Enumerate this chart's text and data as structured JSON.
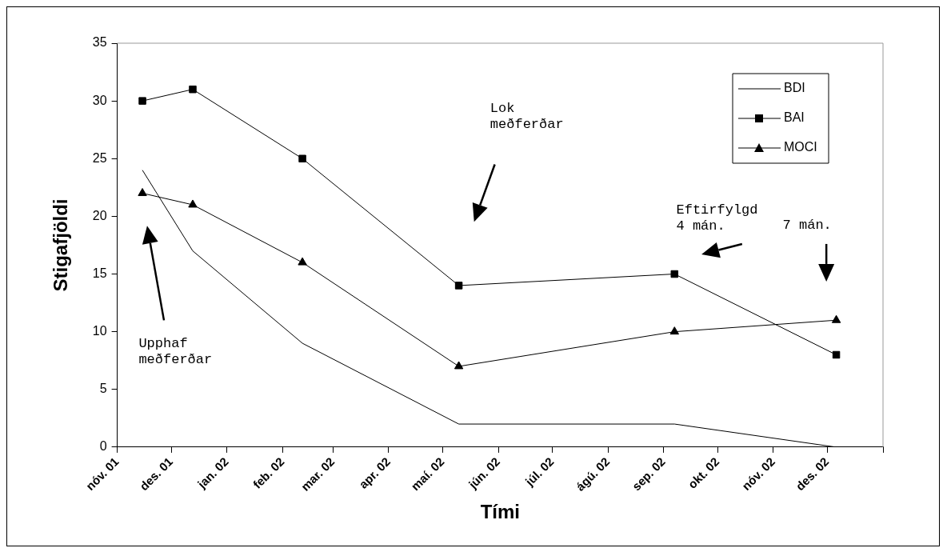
{
  "chart_data": {
    "type": "line",
    "xlabel": "Tími",
    "ylabel": "Stigafjöldi",
    "x": [
      "2001-11-15",
      "2001-12-13",
      "2002-02-12",
      "2002-05-10",
      "2002-09-07",
      "2002-12-06"
    ],
    "series": [
      {
        "name": "BDI",
        "color": "#000000",
        "marker": "none",
        "values": [
          24,
          17,
          9,
          2,
          2,
          0
        ]
      },
      {
        "name": "BAI",
        "color": "#000000",
        "marker": "square",
        "values": [
          30,
          31,
          25,
          14,
          15,
          8
        ]
      },
      {
        "name": "MOCI",
        "color": "#000000",
        "marker": "triangle",
        "values": [
          22,
          21,
          16,
          7,
          10,
          11
        ]
      }
    ],
    "xlim": [
      "2001-11-01",
      "2003-01-01"
    ],
    "xticks": [
      {
        "value": "2001-11",
        "label": "nóv. 01"
      },
      {
        "value": "2001-12",
        "label": "des. 01"
      },
      {
        "value": "2002-01",
        "label": "jan. 02"
      },
      {
        "value": "2002-02",
        "label": "feb. 02"
      },
      {
        "value": "2002-03",
        "label": "mar. 02"
      },
      {
        "value": "2002-04",
        "label": "apr. 02"
      },
      {
        "value": "2002-05",
        "label": "maí. 02"
      },
      {
        "value": "2002-06",
        "label": "jún. 02"
      },
      {
        "value": "2002-07",
        "label": "júl. 02"
      },
      {
        "value": "2002-08",
        "label": "ágú. 02"
      },
      {
        "value": "2002-09",
        "label": "sep. 02"
      },
      {
        "value": "2002-10",
        "label": "okt. 02"
      },
      {
        "value": "2002-11",
        "label": "nóv. 02"
      },
      {
        "value": "2002-12",
        "label": "des. 02"
      },
      {
        "value": "2003-01",
        "label": null
      }
    ],
    "ylim": [
      0,
      35
    ],
    "yticks": [
      0,
      5,
      10,
      15,
      20,
      25,
      30,
      35
    ],
    "grid": false,
    "legend": "top right",
    "line_style": "solid",
    "annotations": [
      "Upphaf\nmeðferðar",
      "Lok\nmeðferðar",
      "Eftirfylgd\n4 mán.",
      "7 mán."
    ]
  }
}
